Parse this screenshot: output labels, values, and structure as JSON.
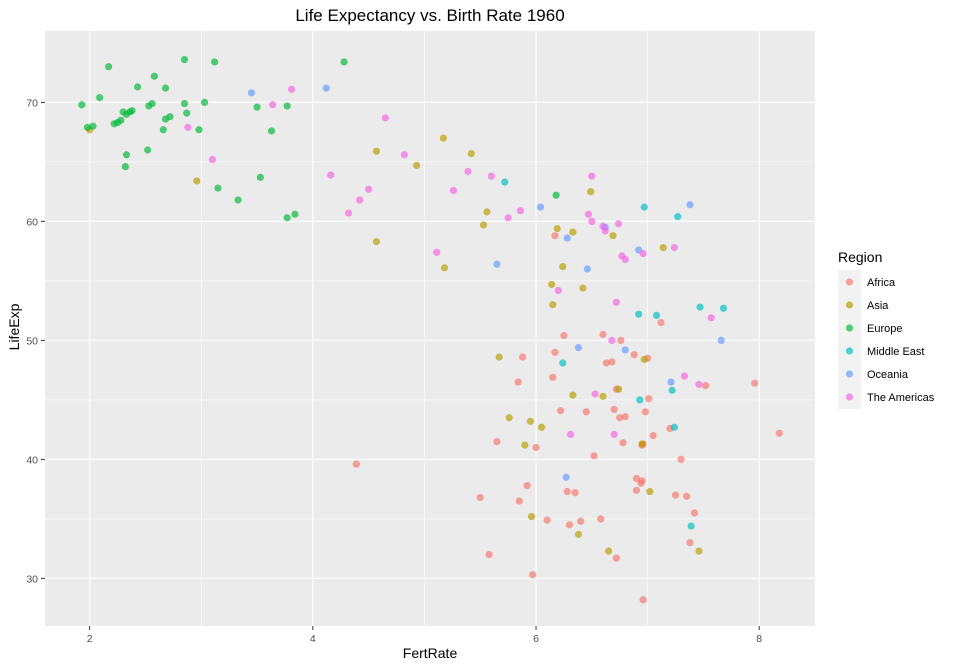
{
  "chart_data": {
    "type": "scatter",
    "title": "Life Expectancy vs. Birth Rate 1960",
    "xlabel": "FertRate",
    "ylabel": "LifeExp",
    "xlim": [
      1.6,
      8.5
    ],
    "ylim": [
      26,
      76
    ],
    "x_ticks": [
      2,
      4,
      6,
      8
    ],
    "y_ticks": [
      30,
      40,
      50,
      60,
      70
    ],
    "grid": true,
    "legend": {
      "title": "Region",
      "position": "right"
    },
    "series": [
      {
        "name": "Africa",
        "color": "#F8766D",
        "points": [
          [
            4.39,
            39.6
          ],
          [
            5.5,
            36.8
          ],
          [
            5.58,
            32.0
          ],
          [
            5.65,
            41.5
          ],
          [
            5.84,
            46.5
          ],
          [
            5.88,
            48.6
          ],
          [
            5.85,
            36.5
          ],
          [
            5.92,
            37.8
          ],
          [
            5.97,
            30.3
          ],
          [
            6.0,
            41.0
          ],
          [
            6.1,
            34.9
          ],
          [
            6.15,
            46.9
          ],
          [
            6.17,
            49.0
          ],
          [
            6.17,
            58.8
          ],
          [
            6.22,
            44.1
          ],
          [
            6.25,
            50.4
          ],
          [
            6.28,
            37.3
          ],
          [
            6.3,
            34.5
          ],
          [
            6.35,
            37.2
          ],
          [
            6.4,
            34.8
          ],
          [
            6.45,
            44.0
          ],
          [
            6.52,
            40.3
          ],
          [
            6.58,
            35.0
          ],
          [
            6.6,
            50.5
          ],
          [
            6.63,
            48.1
          ],
          [
            6.68,
            48.2
          ],
          [
            6.7,
            44.2
          ],
          [
            6.72,
            45.9
          ],
          [
            6.75,
            43.5
          ],
          [
            6.76,
            50.0
          ],
          [
            6.78,
            41.4
          ],
          [
            6.8,
            43.6
          ],
          [
            6.88,
            48.8
          ],
          [
            6.9,
            38.4
          ],
          [
            6.9,
            37.4
          ],
          [
            6.94,
            38.0
          ],
          [
            6.95,
            38.2
          ],
          [
            6.95,
            41.2
          ],
          [
            6.96,
            41.3
          ],
          [
            6.98,
            44.0
          ],
          [
            7.0,
            48.5
          ],
          [
            7.01,
            45.1
          ],
          [
            7.05,
            42.0
          ],
          [
            7.12,
            51.5
          ],
          [
            7.2,
            42.6
          ],
          [
            7.25,
            37.0
          ],
          [
            7.3,
            40.0
          ],
          [
            7.35,
            36.9
          ],
          [
            7.38,
            33.0
          ],
          [
            7.42,
            35.5
          ],
          [
            7.52,
            46.2
          ],
          [
            7.96,
            46.4
          ],
          [
            8.18,
            42.2
          ],
          [
            6.96,
            28.2
          ],
          [
            6.72,
            31.7
          ]
        ]
      },
      {
        "name": "Asia",
        "color": "#B79F00",
        "points": [
          [
            2.0,
            67.7
          ],
          [
            2.96,
            63.4
          ],
          [
            4.57,
            65.9
          ],
          [
            4.57,
            58.3
          ],
          [
            4.93,
            64.7
          ],
          [
            5.17,
            67.0
          ],
          [
            5.18,
            56.1
          ],
          [
            5.42,
            65.7
          ],
          [
            5.53,
            59.7
          ],
          [
            5.56,
            60.8
          ],
          [
            5.67,
            48.6
          ],
          [
            5.76,
            43.5
          ],
          [
            5.9,
            41.2
          ],
          [
            5.95,
            43.2
          ],
          [
            5.96,
            35.2
          ],
          [
            6.05,
            42.7
          ],
          [
            6.14,
            54.7
          ],
          [
            6.15,
            53.0
          ],
          [
            6.19,
            59.4
          ],
          [
            6.24,
            56.2
          ],
          [
            6.33,
            45.4
          ],
          [
            6.33,
            59.1
          ],
          [
            6.38,
            33.7
          ],
          [
            6.42,
            54.4
          ],
          [
            6.49,
            62.5
          ],
          [
            6.6,
            45.3
          ],
          [
            6.65,
            32.3
          ],
          [
            6.69,
            58.8
          ],
          [
            6.74,
            45.9
          ],
          [
            6.95,
            41.3
          ],
          [
            6.97,
            48.4
          ],
          [
            7.02,
            37.3
          ],
          [
            7.14,
            57.8
          ],
          [
            7.46,
            32.3
          ]
        ]
      },
      {
        "name": "Europe",
        "color": "#00BA38",
        "points": [
          [
            1.93,
            69.8
          ],
          [
            1.98,
            67.9
          ],
          [
            2.03,
            68.0
          ],
          [
            2.09,
            70.4
          ],
          [
            2.17,
            73.0
          ],
          [
            2.22,
            68.2
          ],
          [
            2.25,
            68.3
          ],
          [
            2.28,
            68.5
          ],
          [
            2.3,
            69.2
          ],
          [
            2.32,
            64.6
          ],
          [
            2.33,
            65.6
          ],
          [
            2.33,
            69.0
          ],
          [
            2.36,
            69.2
          ],
          [
            2.38,
            69.3
          ],
          [
            2.43,
            71.3
          ],
          [
            2.52,
            66.0
          ],
          [
            2.53,
            69.7
          ],
          [
            2.56,
            69.9
          ],
          [
            2.58,
            72.2
          ],
          [
            2.66,
            67.7
          ],
          [
            2.68,
            68.6
          ],
          [
            2.68,
            71.2
          ],
          [
            2.72,
            68.8
          ],
          [
            2.85,
            73.6
          ],
          [
            2.85,
            69.9
          ],
          [
            2.87,
            69.1
          ],
          [
            2.98,
            67.7
          ],
          [
            3.03,
            70.0
          ],
          [
            3.12,
            73.4
          ],
          [
            3.15,
            62.8
          ],
          [
            3.33,
            61.8
          ],
          [
            3.5,
            69.6
          ],
          [
            3.53,
            63.7
          ],
          [
            3.63,
            67.6
          ],
          [
            3.77,
            69.7
          ],
          [
            3.77,
            60.3
          ],
          [
            3.84,
            60.6
          ],
          [
            4.28,
            73.4
          ],
          [
            6.18,
            62.2
          ]
        ]
      },
      {
        "name": "Middle East",
        "color": "#00BFC4",
        "points": [
          [
            5.72,
            63.3
          ],
          [
            6.24,
            48.1
          ],
          [
            6.92,
            52.2
          ],
          [
            6.93,
            45.0
          ],
          [
            6.97,
            61.2
          ],
          [
            7.08,
            52.1
          ],
          [
            7.22,
            45.8
          ],
          [
            7.24,
            42.7
          ],
          [
            7.27,
            60.4
          ],
          [
            7.39,
            34.4
          ],
          [
            7.47,
            52.8
          ],
          [
            7.68,
            52.7
          ]
        ]
      },
      {
        "name": "Oceania",
        "color": "#619CFF",
        "points": [
          [
            3.45,
            70.8
          ],
          [
            4.12,
            71.2
          ],
          [
            5.65,
            56.4
          ],
          [
            6.04,
            61.2
          ],
          [
            6.27,
            38.5
          ],
          [
            6.28,
            58.6
          ],
          [
            6.38,
            49.4
          ],
          [
            6.46,
            56.0
          ],
          [
            6.62,
            59.5
          ],
          [
            6.8,
            49.2
          ],
          [
            6.92,
            57.6
          ],
          [
            7.21,
            46.5
          ],
          [
            7.38,
            61.4
          ],
          [
            7.66,
            50.0
          ]
        ]
      },
      {
        "name": "The Americas",
        "color": "#F564E3",
        "points": [
          [
            2.88,
            67.9
          ],
          [
            3.1,
            65.2
          ],
          [
            3.64,
            69.8
          ],
          [
            3.81,
            71.1
          ],
          [
            4.16,
            63.9
          ],
          [
            4.32,
            60.7
          ],
          [
            4.42,
            61.8
          ],
          [
            4.5,
            62.7
          ],
          [
            4.65,
            68.7
          ],
          [
            4.82,
            65.6
          ],
          [
            5.11,
            57.4
          ],
          [
            5.26,
            62.6
          ],
          [
            5.39,
            64.2
          ],
          [
            5.6,
            63.8
          ],
          [
            5.75,
            60.3
          ],
          [
            5.86,
            60.9
          ],
          [
            6.2,
            54.2
          ],
          [
            6.31,
            42.1
          ],
          [
            6.47,
            60.6
          ],
          [
            6.5,
            63.8
          ],
          [
            6.5,
            60.0
          ],
          [
            6.53,
            45.5
          ],
          [
            6.6,
            59.6
          ],
          [
            6.62,
            59.2
          ],
          [
            6.68,
            50.0
          ],
          [
            6.7,
            42.1
          ],
          [
            6.72,
            53.2
          ],
          [
            6.74,
            59.8
          ],
          [
            6.77,
            57.1
          ],
          [
            6.8,
            56.8
          ],
          [
            6.96,
            57.3
          ],
          [
            7.24,
            57.8
          ],
          [
            7.33,
            47.0
          ],
          [
            7.46,
            46.3
          ],
          [
            7.57,
            51.9
          ]
        ]
      }
    ]
  }
}
